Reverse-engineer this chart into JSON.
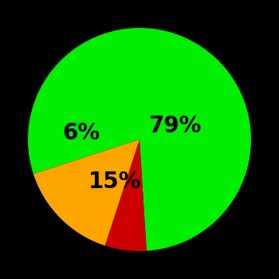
{
  "slices": [
    79,
    6,
    15
  ],
  "colors": [
    "#00ee00",
    "#cc0000",
    "#ffa500"
  ],
  "background_color": "#000000",
  "startangle": 198,
  "label_fontsize": 20,
  "label_color": "#000000",
  "label_positions": {
    "79%": [
      0.32,
      0.12
    ],
    "6%": [
      -0.52,
      0.06
    ],
    "15%": [
      -0.22,
      -0.38
    ]
  }
}
